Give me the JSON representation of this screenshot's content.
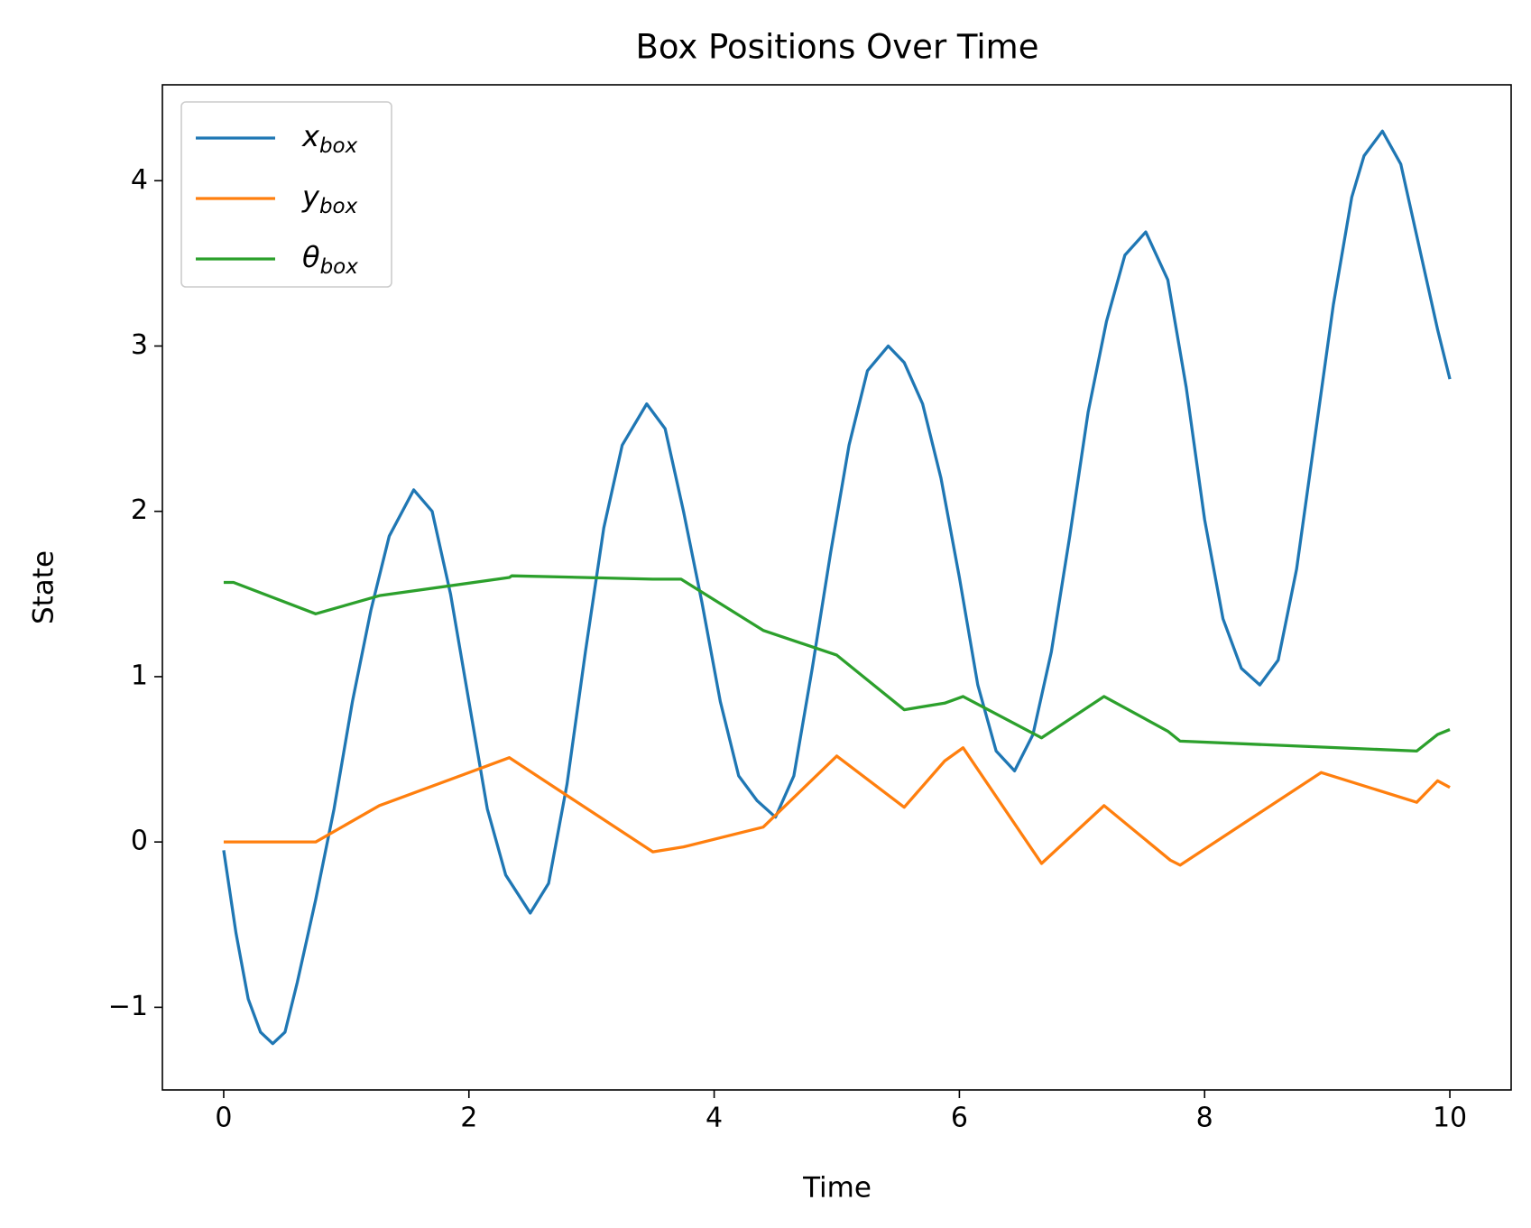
{
  "chart_data": {
    "type": "line",
    "title": "Box Positions Over Time",
    "x_label": "Time",
    "y_label": "State",
    "xlim": [
      -0.5,
      10.5
    ],
    "ylim": [
      -1.5,
      4.58
    ],
    "xticks": [
      0,
      2,
      4,
      6,
      8,
      10
    ],
    "yticks": [
      {
        "value": -1,
        "label": "−1"
      },
      0,
      1,
      2,
      3,
      4
    ],
    "legend": "upper left",
    "series": [
      {
        "name": "x_box",
        "color": "#1f77b4",
        "x": [
          0,
          0.1,
          0.2,
          0.3,
          0.4,
          0.5,
          0.6,
          0.75,
          0.9,
          1.05,
          1.2,
          1.35,
          1.55,
          1.7,
          1.85,
          2.0,
          2.15,
          2.3,
          2.5,
          2.65,
          2.8,
          2.95,
          3.1,
          3.25,
          3.45,
          3.6,
          3.75,
          3.9,
          4.05,
          4.2,
          4.35,
          4.5,
          4.65,
          4.8,
          4.95,
          5.1,
          5.25,
          5.42,
          5.55,
          5.7,
          5.85,
          6.0,
          6.15,
          6.3,
          6.45,
          6.6,
          6.75,
          6.9,
          7.05,
          7.2,
          7.35,
          7.52,
          7.7,
          7.85,
          8.0,
          8.15,
          8.3,
          8.45,
          8.6,
          8.75,
          8.9,
          9.05,
          9.2,
          9.3,
          9.45,
          9.6,
          9.75,
          9.9,
          10.0
        ],
        "values": [
          -0.05,
          -0.55,
          -0.95,
          -1.15,
          -1.22,
          -1.15,
          -0.85,
          -0.35,
          0.2,
          0.85,
          1.4,
          1.85,
          2.13,
          2.0,
          1.5,
          0.85,
          0.2,
          -0.2,
          -0.43,
          -0.25,
          0.35,
          1.15,
          1.9,
          2.4,
          2.65,
          2.5,
          2.0,
          1.45,
          0.85,
          0.4,
          0.25,
          0.15,
          0.4,
          1.05,
          1.75,
          2.4,
          2.85,
          3.0,
          2.9,
          2.65,
          2.2,
          1.6,
          0.95,
          0.55,
          0.43,
          0.65,
          1.15,
          1.85,
          2.6,
          3.15,
          3.55,
          3.69,
          3.4,
          2.75,
          1.95,
          1.35,
          1.05,
          0.95,
          1.1,
          1.65,
          2.45,
          3.25,
          3.9,
          4.15,
          4.3,
          4.1,
          3.6,
          3.1,
          2.8
        ]
      },
      {
        "name": "y_box",
        "color": "#ff7f0e",
        "x": [
          0,
          0.75,
          1.27,
          2.33,
          3.5,
          3.75,
          4.4,
          5.0,
          5.55,
          5.88,
          6.03,
          6.67,
          7.18,
          7.72,
          7.8,
          8.95,
          9.73,
          9.9,
          10.0
        ],
        "values": [
          0,
          0,
          0.22,
          0.51,
          -0.06,
          -0.03,
          0.09,
          0.52,
          0.21,
          0.49,
          0.57,
          -0.13,
          0.22,
          -0.11,
          -0.14,
          0.42,
          0.24,
          0.37,
          0.33
        ]
      },
      {
        "name": "θ_box",
        "color": "#2ca02c",
        "x": [
          0,
          0.08,
          0.75,
          1.27,
          2.33,
          2.35,
          3.5,
          3.73,
          4.4,
          5.0,
          5.55,
          5.88,
          6.03,
          6.67,
          7.18,
          7.7,
          7.8,
          9.73,
          9.9,
          10.0
        ],
        "values": [
          1.57,
          1.57,
          1.38,
          1.49,
          1.6,
          1.61,
          1.59,
          1.59,
          1.28,
          1.13,
          0.8,
          0.84,
          0.88,
          0.63,
          0.88,
          0.67,
          0.61,
          0.55,
          0.65,
          0.68
        ]
      }
    ]
  }
}
